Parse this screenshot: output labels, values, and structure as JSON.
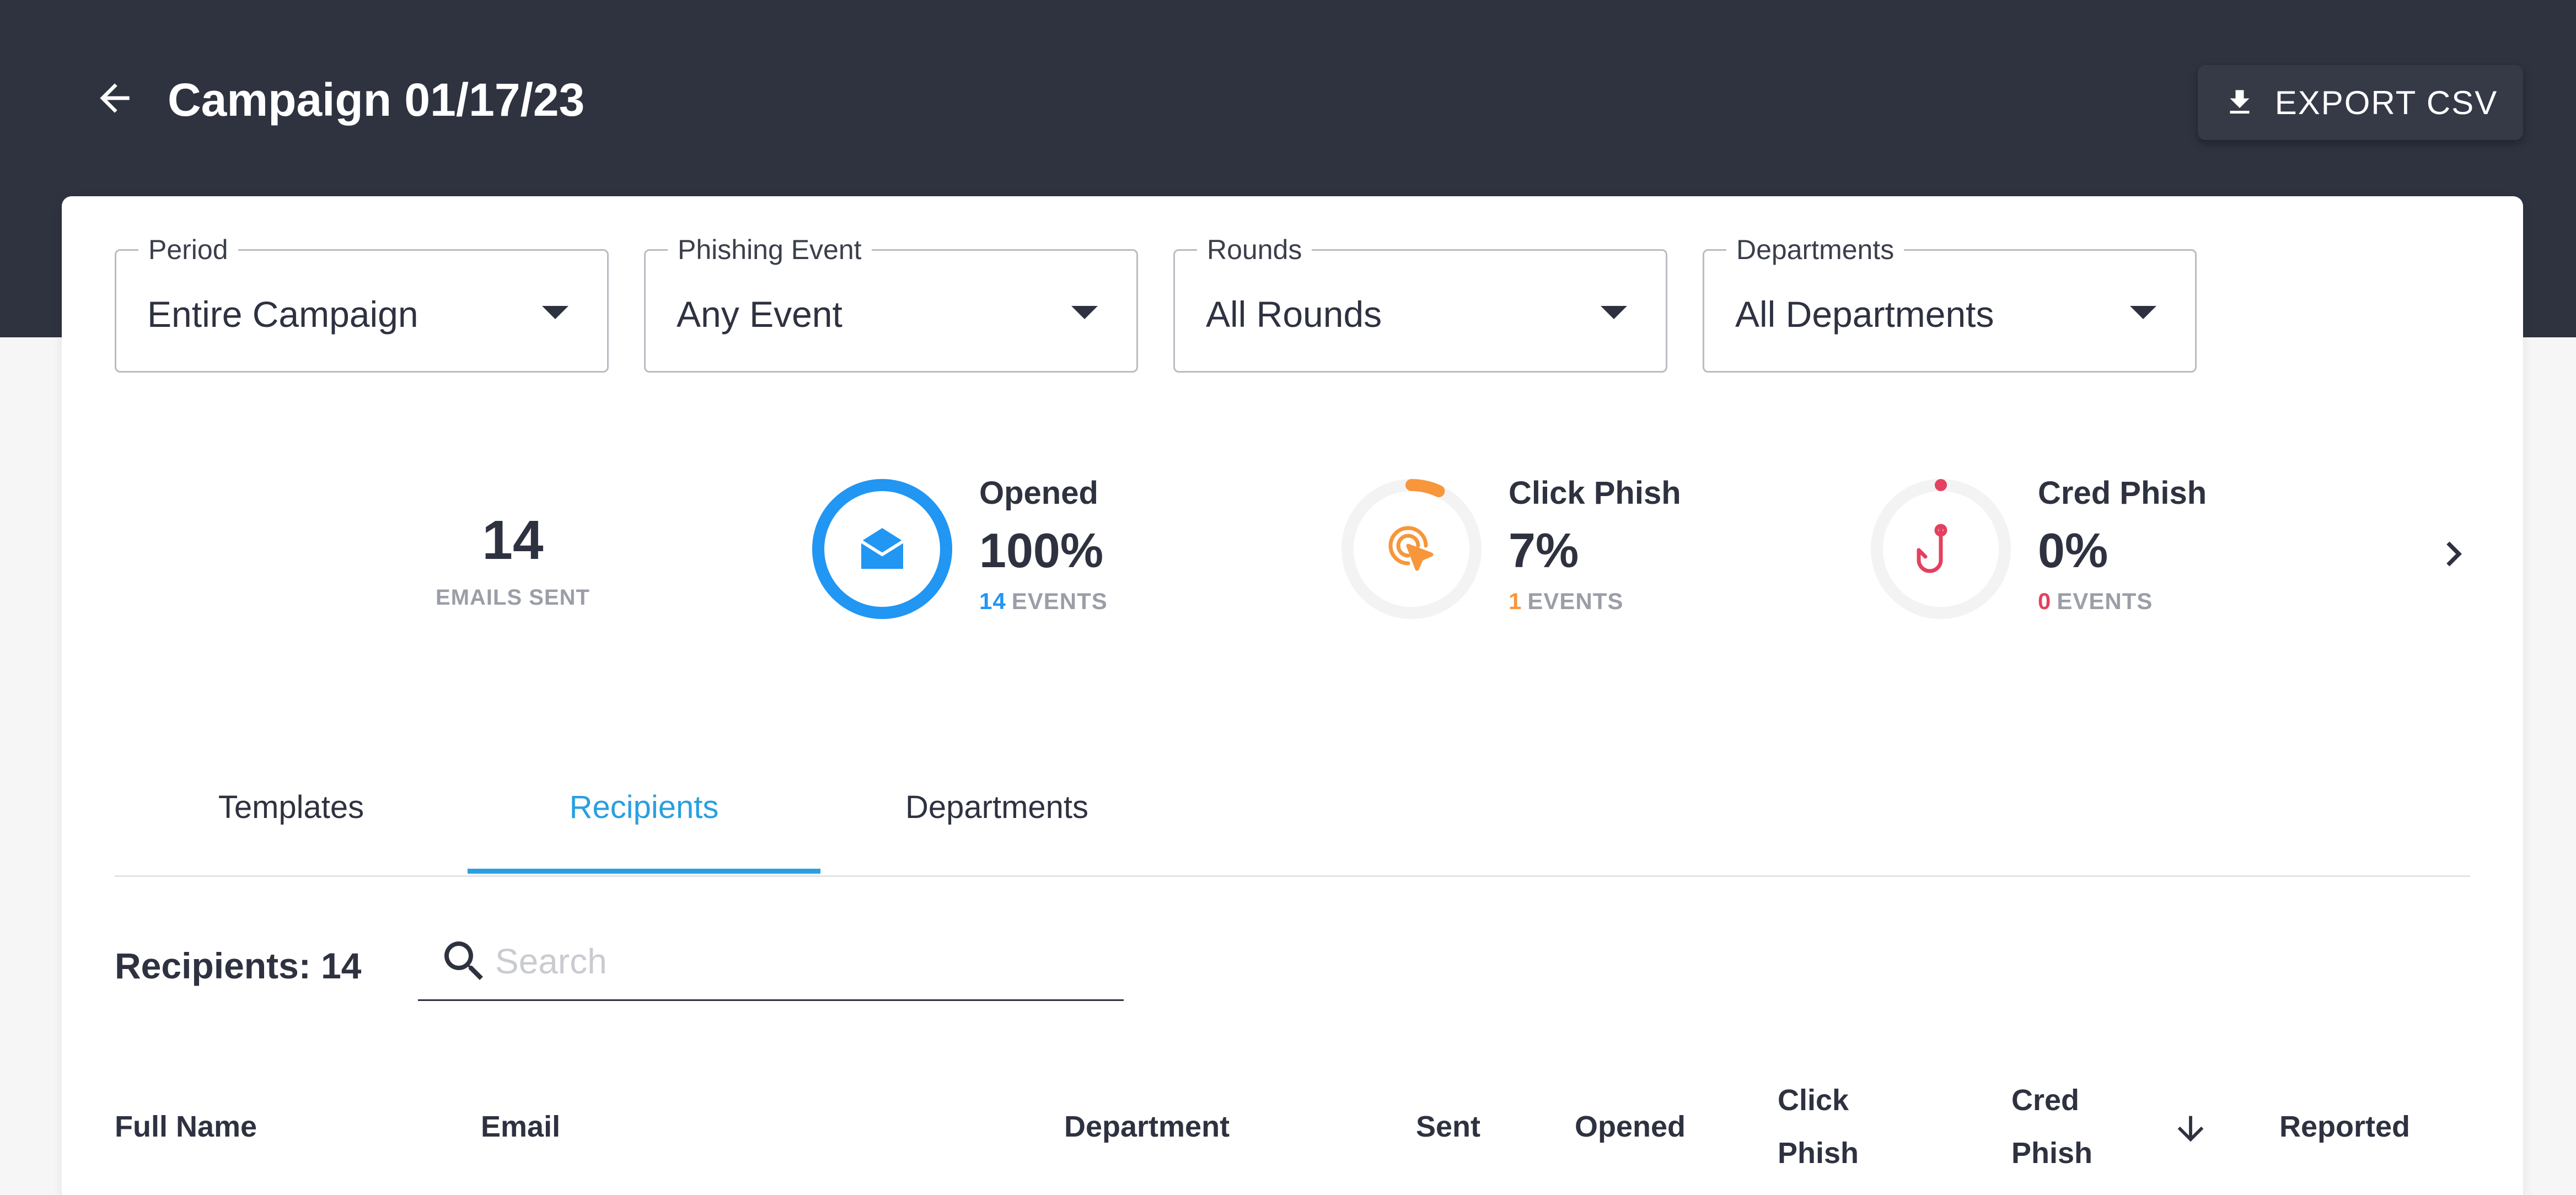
{
  "header": {
    "title": "Campaign 01/17/23",
    "export_label": "EXPORT CSV"
  },
  "filters": [
    {
      "label": "Period",
      "value": "Entire Campaign"
    },
    {
      "label": "Phishing Event",
      "value": "Any Event"
    },
    {
      "label": "Rounds",
      "value": "All Rounds"
    },
    {
      "label": "Departments",
      "value": "All Departments"
    }
  ],
  "stats": {
    "emails_sent": {
      "value": "14",
      "caption": "EMAILS SENT"
    },
    "opened": {
      "name": "Opened",
      "percent": "100%",
      "percent_value": 100,
      "events": "14",
      "events_label": "EVENTS",
      "color": "#2196f3",
      "icon": "envelope-open-icon"
    },
    "click_phish": {
      "name": "Click Phish",
      "percent": "7%",
      "percent_value": 7,
      "events": "1",
      "events_label": "EVENTS",
      "color": "#f7963a",
      "icon": "click-target-icon"
    },
    "cred_phish": {
      "name": "Cred Phish",
      "percent": "0%",
      "percent_value": 0,
      "events": "0",
      "events_label": "EVENTS",
      "color": "#e4405f",
      "icon": "fish-hook-icon"
    }
  },
  "tabs": [
    {
      "label": "Templates",
      "active": false
    },
    {
      "label": "Recipients",
      "active": true
    },
    {
      "label": "Departments",
      "active": false
    }
  ],
  "recipients": {
    "count_label": "Recipients: 14",
    "search_placeholder": "Search"
  },
  "table": {
    "columns": [
      "Full Name",
      "Email",
      "Department",
      "Sent",
      "Opened",
      "Click Phish",
      "Cred Phish",
      "Reported"
    ]
  },
  "colors": {
    "header_bg": "#2f3340",
    "accent": "#2a9fe0",
    "ring_track": "#f3f3f4"
  }
}
